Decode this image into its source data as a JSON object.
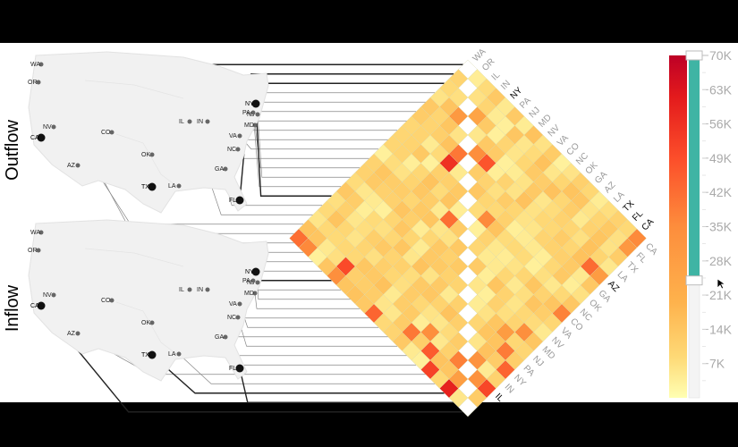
{
  "labels": {
    "outflow": "Outflow",
    "inflow": "Inflow"
  },
  "colors": {
    "background_bar": "#000000",
    "land": "#f1f1f1",
    "land_highlight": "#dddddd",
    "line": "#888888",
    "line_highlight": "#222222",
    "slider_active": "#3fb4a4",
    "slider_track": "#f4f4f4"
  },
  "map_states": [
    {
      "code": "WA",
      "hi": false
    },
    {
      "code": "OR",
      "hi": false
    },
    {
      "code": "CA",
      "hi": true
    },
    {
      "code": "NV",
      "hi": false
    },
    {
      "code": "AZ",
      "hi": false
    },
    {
      "code": "CO",
      "hi": false
    },
    {
      "code": "OK",
      "hi": false
    },
    {
      "code": "TX",
      "hi": true
    },
    {
      "code": "LA",
      "hi": false
    },
    {
      "code": "IL",
      "hi": false
    },
    {
      "code": "IN",
      "hi": false
    },
    {
      "code": "GA",
      "hi": false
    },
    {
      "code": "FL",
      "hi": true
    },
    {
      "code": "NC",
      "hi": false
    },
    {
      "code": "VA",
      "hi": false
    },
    {
      "code": "MD",
      "hi": false
    },
    {
      "code": "NJ",
      "hi": false
    },
    {
      "code": "PA",
      "hi": false
    },
    {
      "code": "NY",
      "hi": true
    }
  ],
  "chart_data": {
    "type": "heatmap",
    "states": [
      "WA",
      "OR",
      "IL",
      "IN",
      "NY",
      "PA",
      "NJ",
      "MD",
      "NV",
      "VA",
      "CO",
      "NC",
      "OK",
      "GA",
      "AZ",
      "LA",
      "TX",
      "FL",
      "CA"
    ],
    "highlighted": [
      "NY",
      "TX",
      "FL",
      "CA"
    ],
    "colorbar": {
      "ticks": [
        "70K",
        "63K",
        "56K",
        "49K",
        "42K",
        "35K",
        "28K",
        "21K",
        "14K",
        "7K"
      ],
      "min": 0,
      "max": 70000,
      "selected_range": [
        24000,
        70000
      ]
    },
    "strong_values": [
      {
        "row": "CA",
        "col": "WA",
        "value": 42000
      },
      {
        "row": "CA",
        "col": "OR",
        "value": 36000
      },
      {
        "row": "CA",
        "col": "NV",
        "value": 44000
      },
      {
        "row": "CA",
        "col": "AZ",
        "value": 52000
      },
      {
        "row": "CA",
        "col": "TX",
        "value": 60000
      },
      {
        "row": "FL",
        "col": "NY",
        "value": 50000
      },
      {
        "row": "FL",
        "col": "GA",
        "value": 46000
      },
      {
        "row": "FL",
        "col": "NC",
        "value": 40000
      },
      {
        "row": "TX",
        "col": "LA",
        "value": 38000
      },
      {
        "row": "TX",
        "col": "OK",
        "value": 34000
      },
      {
        "row": "NJ",
        "col": "NY",
        "value": 56000
      },
      {
        "row": "PA",
        "col": "NY",
        "value": 40000
      },
      {
        "row": "VA",
        "col": "MD",
        "value": 42000
      },
      {
        "row": "CA",
        "col": "NY",
        "value": 34000
      },
      {
        "row": "TX",
        "col": "FL",
        "value": 33000
      },
      {
        "row": "IN",
        "col": "IL",
        "value": 30000
      }
    ]
  }
}
